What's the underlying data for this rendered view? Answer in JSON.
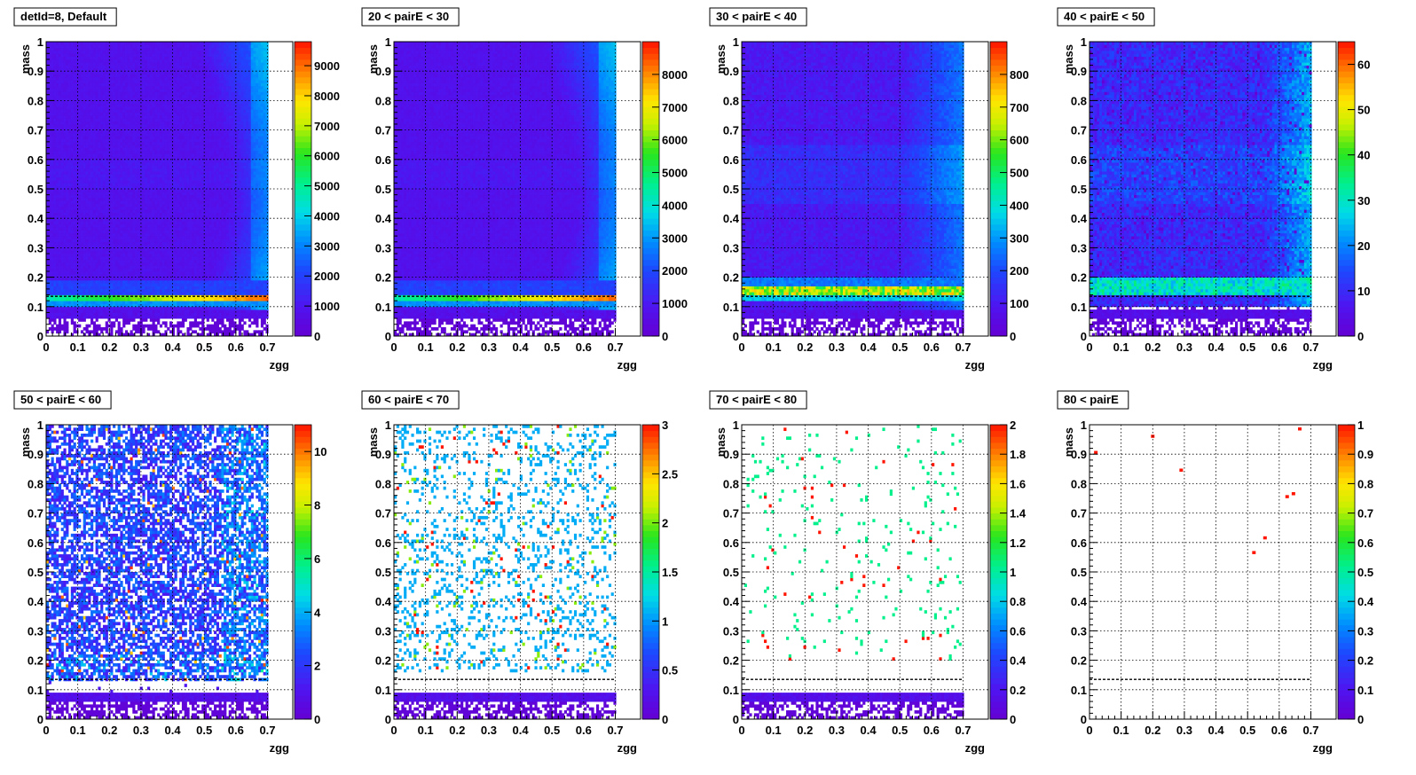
{
  "chart_data": [
    {
      "type": "heatmap",
      "title": "detId=8, Default",
      "xlabel": "zgg",
      "ylabel": "mass",
      "xlim": [
        0,
        0.78
      ],
      "ylim": [
        0,
        1
      ],
      "xticks": [
        "0",
        "0.1",
        "0.2",
        "0.3",
        "0.4",
        "0.5",
        "0.6",
        "0.7"
      ],
      "yticks": [
        "0",
        "0.1",
        "0.2",
        "0.3",
        "0.4",
        "0.5",
        "0.6",
        "0.7",
        "0.8",
        "0.9",
        "1"
      ],
      "zmax": 9800,
      "zticks": [
        0,
        1000,
        2000,
        3000,
        4000,
        5000,
        6000,
        7000,
        8000,
        9000
      ],
      "ztick_labels": [
        "0",
        "1000",
        "2000",
        "3000",
        "4000",
        "5000",
        "6000",
        "7000",
        "8000",
        "9000"
      ],
      "reference_line_y": 0.135,
      "grid": true
    },
    {
      "type": "heatmap",
      "title": "20 < pairE < 30",
      "xlabel": "zgg",
      "ylabel": "mass",
      "xlim": [
        0,
        0.78
      ],
      "ylim": [
        0,
        1
      ],
      "xticks": [
        "0",
        "0.1",
        "0.2",
        "0.3",
        "0.4",
        "0.5",
        "0.6",
        "0.7"
      ],
      "yticks": [
        "0",
        "0.1",
        "0.2",
        "0.3",
        "0.4",
        "0.5",
        "0.6",
        "0.7",
        "0.8",
        "0.9",
        "1"
      ],
      "zmax": 9000,
      "zticks": [
        0,
        1000,
        2000,
        3000,
        4000,
        5000,
        6000,
        7000,
        8000
      ],
      "ztick_labels": [
        "0",
        "1000",
        "2000",
        "3000",
        "4000",
        "5000",
        "6000",
        "7000",
        "8000"
      ],
      "reference_line_y": 0.135,
      "grid": true
    },
    {
      "type": "heatmap",
      "title": "30 < pairE < 40",
      "xlabel": "zgg",
      "ylabel": "mass",
      "xlim": [
        0,
        0.78
      ],
      "ylim": [
        0,
        1
      ],
      "xticks": [
        "0",
        "0.1",
        "0.2",
        "0.3",
        "0.4",
        "0.5",
        "0.6",
        "0.7"
      ],
      "yticks": [
        "0",
        "0.1",
        "0.2",
        "0.3",
        "0.4",
        "0.5",
        "0.6",
        "0.7",
        "0.8",
        "0.9",
        "1"
      ],
      "zmax": 900,
      "zticks": [
        0,
        100,
        200,
        300,
        400,
        500,
        600,
        700,
        800
      ],
      "ztick_labels": [
        "0",
        "100",
        "200",
        "300",
        "400",
        "500",
        "600",
        "700",
        "800"
      ],
      "reference_line_y": 0.135,
      "grid": true
    },
    {
      "type": "heatmap",
      "title": "40 < pairE < 50",
      "xlabel": "zgg",
      "ylabel": "mass",
      "xlim": [
        0,
        0.78
      ],
      "ylim": [
        0,
        1
      ],
      "xticks": [
        "0",
        "0.1",
        "0.2",
        "0.3",
        "0.4",
        "0.5",
        "0.6",
        "0.7"
      ],
      "yticks": [
        "0",
        "0.1",
        "0.2",
        "0.3",
        "0.4",
        "0.5",
        "0.6",
        "0.7",
        "0.8",
        "0.9",
        "1"
      ],
      "zmax": 65,
      "zticks": [
        0,
        10,
        20,
        30,
        40,
        50,
        60
      ],
      "ztick_labels": [
        "0",
        "10",
        "20",
        "30",
        "40",
        "50",
        "60"
      ],
      "reference_line_y": 0.135,
      "grid": true
    },
    {
      "type": "heatmap",
      "title": "50 < pairE < 60",
      "xlabel": "zgg",
      "ylabel": "mass",
      "xlim": [
        0,
        0.78
      ],
      "ylim": [
        0,
        1
      ],
      "xticks": [
        "0",
        "0.1",
        "0.2",
        "0.3",
        "0.4",
        "0.5",
        "0.6",
        "0.7"
      ],
      "yticks": [
        "0",
        "0.1",
        "0.2",
        "0.3",
        "0.4",
        "0.5",
        "0.6",
        "0.7",
        "0.8",
        "0.9",
        "1"
      ],
      "zmax": 11,
      "zticks": [
        0,
        2,
        4,
        6,
        8,
        10
      ],
      "ztick_labels": [
        "0",
        "2",
        "4",
        "6",
        "8",
        "10"
      ],
      "reference_line_y": 0.135,
      "grid": true
    },
    {
      "type": "heatmap",
      "title": "60 < pairE < 70",
      "xlabel": "zgg",
      "ylabel": "mass",
      "xlim": [
        0,
        0.78
      ],
      "ylim": [
        0,
        1
      ],
      "xticks": [
        "0",
        "0.1",
        "0.2",
        "0.3",
        "0.4",
        "0.5",
        "0.6",
        "0.7"
      ],
      "yticks": [
        "0",
        "0.1",
        "0.2",
        "0.3",
        "0.4",
        "0.5",
        "0.6",
        "0.7",
        "0.8",
        "0.9",
        "1"
      ],
      "zmax": 3,
      "zticks": [
        0,
        0.5,
        1,
        1.5,
        2,
        2.5,
        3
      ],
      "ztick_labels": [
        "0",
        "0.5",
        "1",
        "1.5",
        "2",
        "2.5",
        "3"
      ],
      "reference_line_y": 0.135,
      "grid": true
    },
    {
      "type": "heatmap",
      "title": "70 < pairE < 80",
      "xlabel": "zgg",
      "ylabel": "mass",
      "xlim": [
        0,
        0.78
      ],
      "ylim": [
        0,
        1
      ],
      "xticks": [
        "0",
        "0.1",
        "0.2",
        "0.3",
        "0.4",
        "0.5",
        "0.6",
        "0.7"
      ],
      "yticks": [
        "0",
        "0.1",
        "0.2",
        "0.3",
        "0.4",
        "0.5",
        "0.6",
        "0.7",
        "0.8",
        "0.9",
        "1"
      ],
      "zmax": 2,
      "zticks": [
        0,
        0.2,
        0.4,
        0.6,
        0.8,
        1,
        1.2,
        1.4,
        1.6,
        1.8,
        2
      ],
      "ztick_labels": [
        "0",
        "0.2",
        "0.4",
        "0.6",
        "0.8",
        "1",
        "1.2",
        "1.4",
        "1.6",
        "1.8",
        "2"
      ],
      "reference_line_y": 0.135,
      "grid": true
    },
    {
      "type": "heatmap",
      "title": "80 < pairE",
      "xlabel": "zgg",
      "ylabel": "mass",
      "xlim": [
        0,
        0.78
      ],
      "ylim": [
        0,
        1
      ],
      "xticks": [
        "0",
        "0.1",
        "0.2",
        "0.3",
        "0.4",
        "0.5",
        "0.6",
        "0.7"
      ],
      "yticks": [
        "0",
        "0.1",
        "0.2",
        "0.3",
        "0.4",
        "0.5",
        "0.6",
        "0.7",
        "0.8",
        "0.9",
        "1"
      ],
      "zmax": 1,
      "zticks": [
        0,
        0.1,
        0.2,
        0.3,
        0.4,
        0.5,
        0.6,
        0.7,
        0.8,
        0.9,
        1
      ],
      "ztick_labels": [
        "0",
        "0.1",
        "0.2",
        "0.3",
        "0.4",
        "0.5",
        "0.6",
        "0.7",
        "0.8",
        "0.9",
        "1"
      ],
      "reference_line_y": 0.135,
      "grid": true,
      "points": [
        {
          "x": 0.02,
          "y": 0.905,
          "z": 1
        },
        {
          "x": 0.2,
          "y": 0.96,
          "z": 1
        },
        {
          "x": 0.29,
          "y": 0.845,
          "z": 1
        },
        {
          "x": 0.52,
          "y": 0.565,
          "z": 1
        },
        {
          "x": 0.555,
          "y": 0.615,
          "z": 1
        },
        {
          "x": 0.625,
          "y": 0.755,
          "z": 1
        },
        {
          "x": 0.645,
          "y": 0.765,
          "z": 1
        },
        {
          "x": 0.665,
          "y": 0.985,
          "z": 1
        }
      ]
    }
  ]
}
